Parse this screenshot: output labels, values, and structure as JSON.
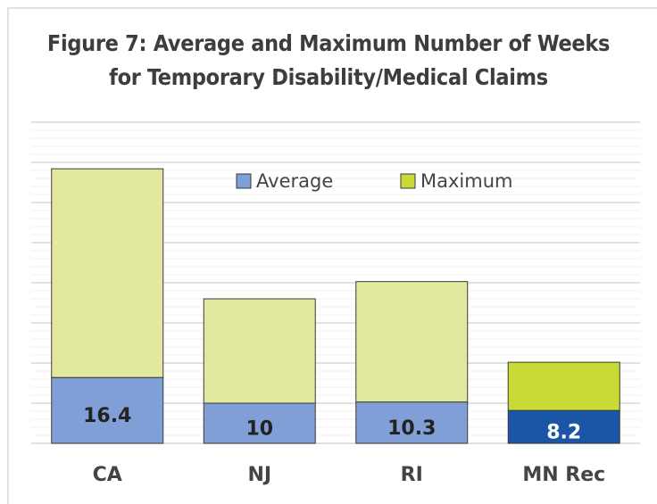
{
  "chart_data": {
    "type": "stacked_bar",
    "title": [
      "Figure 7:  Average and Maximum Number of Weeks",
      "for Temporary Disability/Medical Claims"
    ],
    "categories": [
      "CA",
      "NJ",
      "RI",
      "MN Rec"
    ],
    "series": [
      {
        "name": "Average",
        "color": "#7f9fd6",
        "colors": [
          "#7f9fd6",
          "#7f9fd6",
          "#7f9fd6",
          "#1b56a6"
        ],
        "label_colors": [
          "#222222",
          "#222222",
          "#222222",
          "#ffffff"
        ],
        "values": [
          16.4,
          10,
          10.3,
          8.2
        ]
      },
      {
        "name": "Maximum",
        "color": "#c9d935",
        "colors": [
          "#e3e89f",
          "#e3e89f",
          "#e3e89f",
          "#c9d935"
        ],
        "values": [
          52,
          26,
          30,
          12
        ]
      }
    ],
    "ylim": [
      0,
      80
    ],
    "yticks": [
      0,
      10,
      20,
      30,
      40,
      50,
      60,
      70,
      80
    ],
    "minor_yticks": [
      2,
      4,
      6,
      8,
      12,
      14,
      16,
      18,
      22,
      24,
      26,
      28,
      32,
      34,
      36,
      38,
      42,
      44,
      46,
      48,
      52,
      54,
      56,
      58,
      62,
      64,
      66,
      68,
      72,
      74,
      76,
      78
    ],
    "grid": true
  }
}
